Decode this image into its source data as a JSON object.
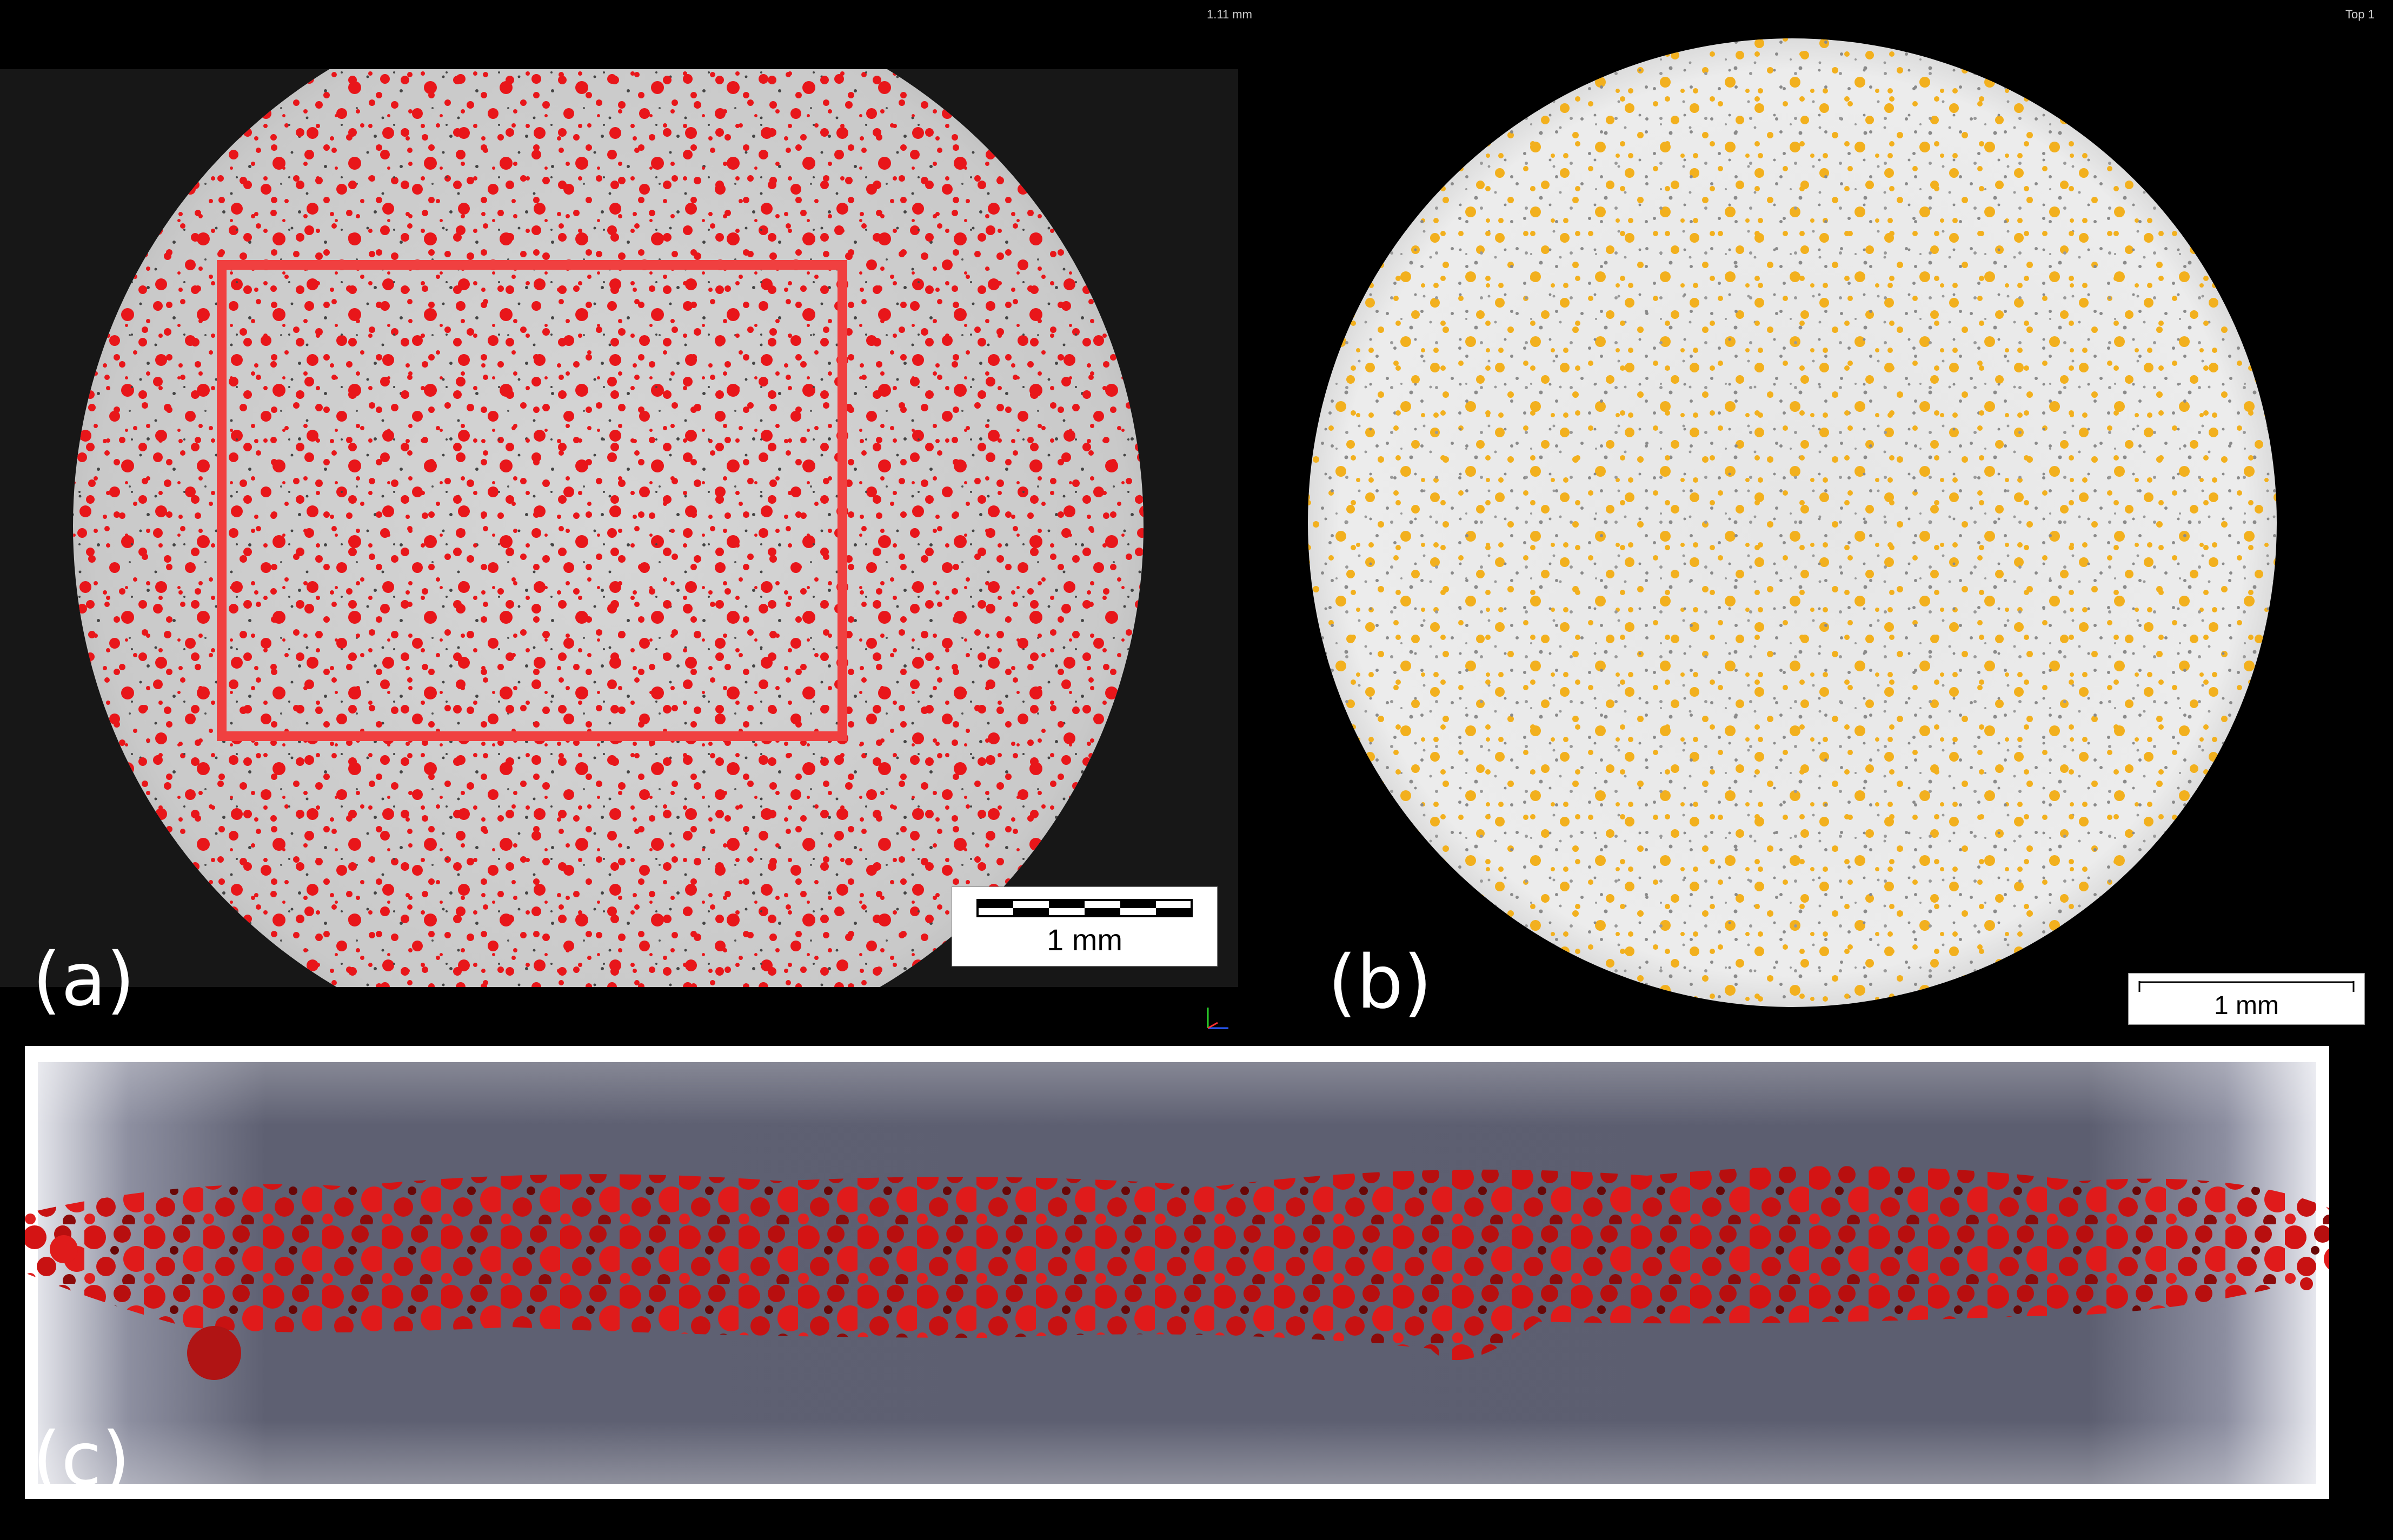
{
  "panels": {
    "a": {
      "label": "(a)",
      "top_note": "1.11 mm",
      "scale_bar": "1 mm"
    },
    "b": {
      "label": "(b)",
      "top_note": "Top 1",
      "scale_bar": "1 mm"
    },
    "c": {
      "label": "(c)"
    }
  },
  "colors": {
    "background": "#000000",
    "particles_a": "#e8161a",
    "particles_b": "#f2b01e",
    "particles_c": "#d41414",
    "roi_box": "#f04040",
    "specimen_c": "#5c5e70"
  }
}
